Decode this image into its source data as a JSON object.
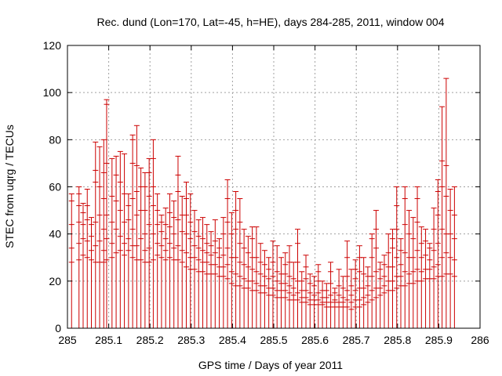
{
  "chart_data": {
    "type": "scatter",
    "title": "Rec. dund (Lon=170, Lat=-45, h=HE), days 284-285, 2011, window 004",
    "xlabel": "GPS time / Days of year 2011",
    "ylabel": "STEC from uqrg / TECUs",
    "xlim": [
      285,
      286
    ],
    "ylim": [
      0,
      120
    ],
    "x_ticks": [
      "285",
      "285.1",
      "285.2",
      "285.3",
      "285.4",
      "285.5",
      "285.6",
      "285.7",
      "285.8",
      "285.9",
      "286"
    ],
    "y_ticks": [
      "0",
      "20",
      "40",
      "60",
      "80",
      "100",
      "120"
    ],
    "grid": true,
    "series_color": "#cc0000",
    "style": "vertical error bars from 0 to upper bound, with horizontal tick marks at sample values",
    "points": [
      {
        "x": 285.01,
        "top": 57,
        "marks": [
          28,
          34,
          44,
          54
        ]
      },
      {
        "x": 285.028,
        "top": 60,
        "marks": [
          29,
          36,
          45,
          52,
          57
        ]
      },
      {
        "x": 285.038,
        "top": 53,
        "marks": [
          31,
          38,
          44,
          49
        ]
      },
      {
        "x": 285.048,
        "top": 59,
        "marks": [
          30,
          37,
          46,
          52
        ]
      },
      {
        "x": 285.058,
        "top": 47,
        "marks": [
          29,
          33,
          39,
          44
        ]
      },
      {
        "x": 285.068,
        "top": 79,
        "marks": [
          28,
          35,
          45,
          62,
          67
        ]
      },
      {
        "x": 285.078,
        "top": 77,
        "marks": [
          28,
          37,
          48,
          60
        ]
      },
      {
        "x": 285.088,
        "top": 80,
        "marks": [
          28,
          33,
          42,
          55,
          66
        ]
      },
      {
        "x": 285.095,
        "top": 97,
        "marks": [
          29,
          38,
          48,
          70,
          95
        ]
      },
      {
        "x": 285.108,
        "top": 72,
        "marks": [
          30,
          36,
          45,
          56
        ]
      },
      {
        "x": 285.118,
        "top": 73,
        "marks": [
          32,
          42,
          54,
          65
        ]
      },
      {
        "x": 285.128,
        "top": 75,
        "marks": [
          33,
          39,
          50,
          62
        ]
      },
      {
        "x": 285.138,
        "top": 74,
        "marks": [
          31,
          36,
          45,
          57
        ]
      },
      {
        "x": 285.148,
        "top": 57,
        "marks": [
          33,
          38,
          46,
          52
        ]
      },
      {
        "x": 285.158,
        "top": 82,
        "marks": [
          30,
          35,
          42,
          55,
          70,
          80
        ]
      },
      {
        "x": 285.168,
        "top": 86,
        "marks": [
          29,
          35,
          48,
          58,
          69
        ]
      },
      {
        "x": 285.178,
        "top": 68,
        "marks": [
          29,
          38,
          50,
          60
        ]
      },
      {
        "x": 285.188,
        "top": 66,
        "marks": [
          28,
          33,
          40,
          50,
          60
        ]
      },
      {
        "x": 285.198,
        "top": 72,
        "marks": [
          28,
          34,
          44,
          56,
          66
        ]
      },
      {
        "x": 285.208,
        "top": 80,
        "marks": [
          29,
          40,
          52,
          60,
          72
        ]
      },
      {
        "x": 285.218,
        "top": 57,
        "marks": [
          31,
          36,
          44,
          50
        ]
      },
      {
        "x": 285.228,
        "top": 48,
        "marks": [
          30,
          35,
          41,
          45
        ]
      },
      {
        "x": 285.238,
        "top": 51,
        "marks": [
          29,
          33,
          38,
          44
        ]
      },
      {
        "x": 285.248,
        "top": 57,
        "marks": [
          30,
          36,
          43,
          49
        ]
      },
      {
        "x": 285.258,
        "top": 54,
        "marks": [
          29,
          34,
          40,
          47
        ]
      },
      {
        "x": 285.268,
        "top": 73,
        "marks": [
          29,
          35,
          46,
          58,
          65
        ]
      },
      {
        "x": 285.278,
        "top": 56,
        "marks": [
          28,
          33,
          41,
          48
        ]
      },
      {
        "x": 285.288,
        "top": 62,
        "marks": [
          26,
          32,
          40,
          48,
          55
        ]
      },
      {
        "x": 285.298,
        "top": 57,
        "marks": [
          25,
          30,
          38,
          45
        ]
      },
      {
        "x": 285.308,
        "top": 50,
        "marks": [
          25,
          30,
          35,
          41
        ]
      },
      {
        "x": 285.318,
        "top": 46,
        "marks": [
          24,
          29,
          34,
          39
        ]
      },
      {
        "x": 285.328,
        "top": 47,
        "marks": [
          24,
          28,
          33,
          38
        ]
      },
      {
        "x": 285.338,
        "top": 44,
        "marks": [
          23,
          28,
          32,
          36
        ]
      },
      {
        "x": 285.348,
        "top": 41,
        "marks": [
          23,
          27,
          31,
          35
        ]
      },
      {
        "x": 285.358,
        "top": 46,
        "marks": [
          23,
          27,
          32,
          37
        ]
      },
      {
        "x": 285.368,
        "top": 38,
        "marks": [
          22,
          26,
          30,
          34
        ]
      },
      {
        "x": 285.378,
        "top": 47,
        "marks": [
          22,
          26,
          31,
          40
        ]
      },
      {
        "x": 285.388,
        "top": 63,
        "marks": [
          21,
          27,
          34,
          45,
          55
        ]
      },
      {
        "x": 285.398,
        "top": 49,
        "marks": [
          19,
          24,
          30,
          40
        ]
      },
      {
        "x": 285.408,
        "top": 58,
        "marks": [
          18,
          23,
          30,
          42,
          50
        ]
      },
      {
        "x": 285.418,
        "top": 55,
        "marks": [
          18,
          22,
          28,
          36,
          45
        ]
      },
      {
        "x": 285.428,
        "top": 42,
        "marks": [
          17,
          21,
          27,
          34
        ]
      },
      {
        "x": 285.438,
        "top": 39,
        "marks": [
          17,
          20,
          26,
          32
        ]
      },
      {
        "x": 285.448,
        "top": 43,
        "marks": [
          16,
          20,
          25,
          30,
          38
        ]
      },
      {
        "x": 285.458,
        "top": 43,
        "marks": [
          16,
          19,
          24,
          30
        ]
      },
      {
        "x": 285.468,
        "top": 36,
        "marks": [
          15,
          18,
          23,
          28
        ]
      },
      {
        "x": 285.478,
        "top": 33,
        "marks": [
          15,
          18,
          22,
          27
        ]
      },
      {
        "x": 285.488,
        "top": 30,
        "marks": [
          14,
          17,
          21,
          25
        ]
      },
      {
        "x": 285.498,
        "top": 37,
        "marks": [
          14,
          17,
          22,
          28
        ]
      },
      {
        "x": 285.508,
        "top": 35,
        "marks": [
          13,
          16,
          20,
          24
        ]
      },
      {
        "x": 285.518,
        "top": 30,
        "marks": [
          13,
          16,
          19,
          23
        ]
      },
      {
        "x": 285.528,
        "top": 32,
        "marks": [
          13,
          16,
          19,
          23,
          27
        ]
      },
      {
        "x": 285.538,
        "top": 35,
        "marks": [
          12,
          15,
          18,
          22,
          28
        ]
      },
      {
        "x": 285.548,
        "top": 28,
        "marks": [
          12,
          14,
          17,
          21
        ]
      },
      {
        "x": 285.558,
        "top": 42,
        "marks": [
          12,
          15,
          20,
          28,
          36
        ]
      },
      {
        "x": 285.568,
        "top": 24,
        "marks": [
          11,
          13,
          16,
          20
        ]
      },
      {
        "x": 285.578,
        "top": 31,
        "marks": [
          11,
          13,
          16,
          21,
          26
        ]
      },
      {
        "x": 285.588,
        "top": 23,
        "marks": [
          10,
          12,
          15,
          19
        ]
      },
      {
        "x": 285.598,
        "top": 22,
        "marks": [
          10,
          12,
          14,
          18
        ]
      },
      {
        "x": 285.608,
        "top": 27,
        "marks": [
          10,
          12,
          15,
          20,
          24
        ]
      },
      {
        "x": 285.618,
        "top": 20,
        "marks": [
          10,
          11,
          13,
          16
        ]
      },
      {
        "x": 285.628,
        "top": 19,
        "marks": [
          9,
          11,
          13,
          16
        ]
      },
      {
        "x": 285.638,
        "top": 28,
        "marks": [
          9,
          11,
          14,
          19,
          24
        ]
      },
      {
        "x": 285.648,
        "top": 17,
        "marks": [
          9,
          11,
          12,
          15
        ]
      },
      {
        "x": 285.658,
        "top": 25,
        "marks": [
          9,
          11,
          14,
          18
        ]
      },
      {
        "x": 285.668,
        "top": 22,
        "marks": [
          9,
          11,
          13,
          17
        ]
      },
      {
        "x": 285.678,
        "top": 37,
        "marks": [
          9,
          12,
          16,
          22,
          30
        ]
      },
      {
        "x": 285.688,
        "top": 25,
        "marks": [
          8,
          11,
          14,
          18
        ]
      },
      {
        "x": 285.698,
        "top": 29,
        "marks": [
          9,
          12,
          16,
          21,
          25
        ]
      },
      {
        "x": 285.708,
        "top": 35,
        "marks": [
          9,
          12,
          17,
          24,
          30
        ]
      },
      {
        "x": 285.718,
        "top": 30,
        "marks": [
          10,
          13,
          17,
          23
        ]
      },
      {
        "x": 285.728,
        "top": 26,
        "marks": [
          11,
          14,
          18,
          22
        ]
      },
      {
        "x": 285.738,
        "top": 40,
        "marks": [
          12,
          16,
          22,
          30,
          38
        ]
      },
      {
        "x": 285.748,
        "top": 50,
        "marks": [
          13,
          17,
          24,
          34,
          42
        ]
      },
      {
        "x": 285.758,
        "top": 28,
        "marks": [
          14,
          17,
          21,
          25
        ]
      },
      {
        "x": 285.768,
        "top": 31,
        "marks": [
          15,
          18,
          22,
          27
        ]
      },
      {
        "x": 285.778,
        "top": 40,
        "marks": [
          16,
          20,
          26,
          32
        ]
      },
      {
        "x": 285.788,
        "top": 42,
        "marks": [
          16,
          20,
          26,
          34,
          38
        ]
      },
      {
        "x": 285.798,
        "top": 60,
        "marks": [
          17,
          22,
          30,
          42,
          52
        ]
      },
      {
        "x": 285.808,
        "top": 38,
        "marks": [
          18,
          22,
          27,
          33
        ]
      },
      {
        "x": 285.818,
        "top": 60,
        "marks": [
          18,
          24,
          32,
          44,
          55
        ]
      },
      {
        "x": 285.828,
        "top": 50,
        "marks": [
          19,
          23,
          30,
          40
        ]
      },
      {
        "x": 285.838,
        "top": 47,
        "marks": [
          19,
          24,
          30,
          38
        ]
      },
      {
        "x": 285.848,
        "top": 60,
        "marks": [
          20,
          25,
          33,
          45,
          55
        ]
      },
      {
        "x": 285.858,
        "top": 43,
        "marks": [
          20,
          24,
          30,
          36
        ]
      },
      {
        "x": 285.868,
        "top": 42,
        "marks": [
          21,
          25,
          31,
          37
        ]
      },
      {
        "x": 285.878,
        "top": 36,
        "marks": [
          21,
          25,
          29,
          34
        ]
      },
      {
        "x": 285.888,
        "top": 51,
        "marks": [
          21,
          26,
          33,
          42
        ]
      },
      {
        "x": 285.898,
        "top": 63,
        "marks": [
          22,
          27,
          36,
          48,
          58
        ]
      },
      {
        "x": 285.908,
        "top": 94,
        "marks": [
          22,
          30,
          42,
          60,
          71
        ]
      },
      {
        "x": 285.918,
        "top": 106,
        "marks": [
          23,
          32,
          40,
          56,
          69
        ]
      },
      {
        "x": 285.928,
        "top": 59,
        "marks": [
          23,
          30,
          40,
          50
        ]
      },
      {
        "x": 285.938,
        "top": 60,
        "marks": [
          22,
          29,
          38,
          48
        ]
      }
    ]
  }
}
